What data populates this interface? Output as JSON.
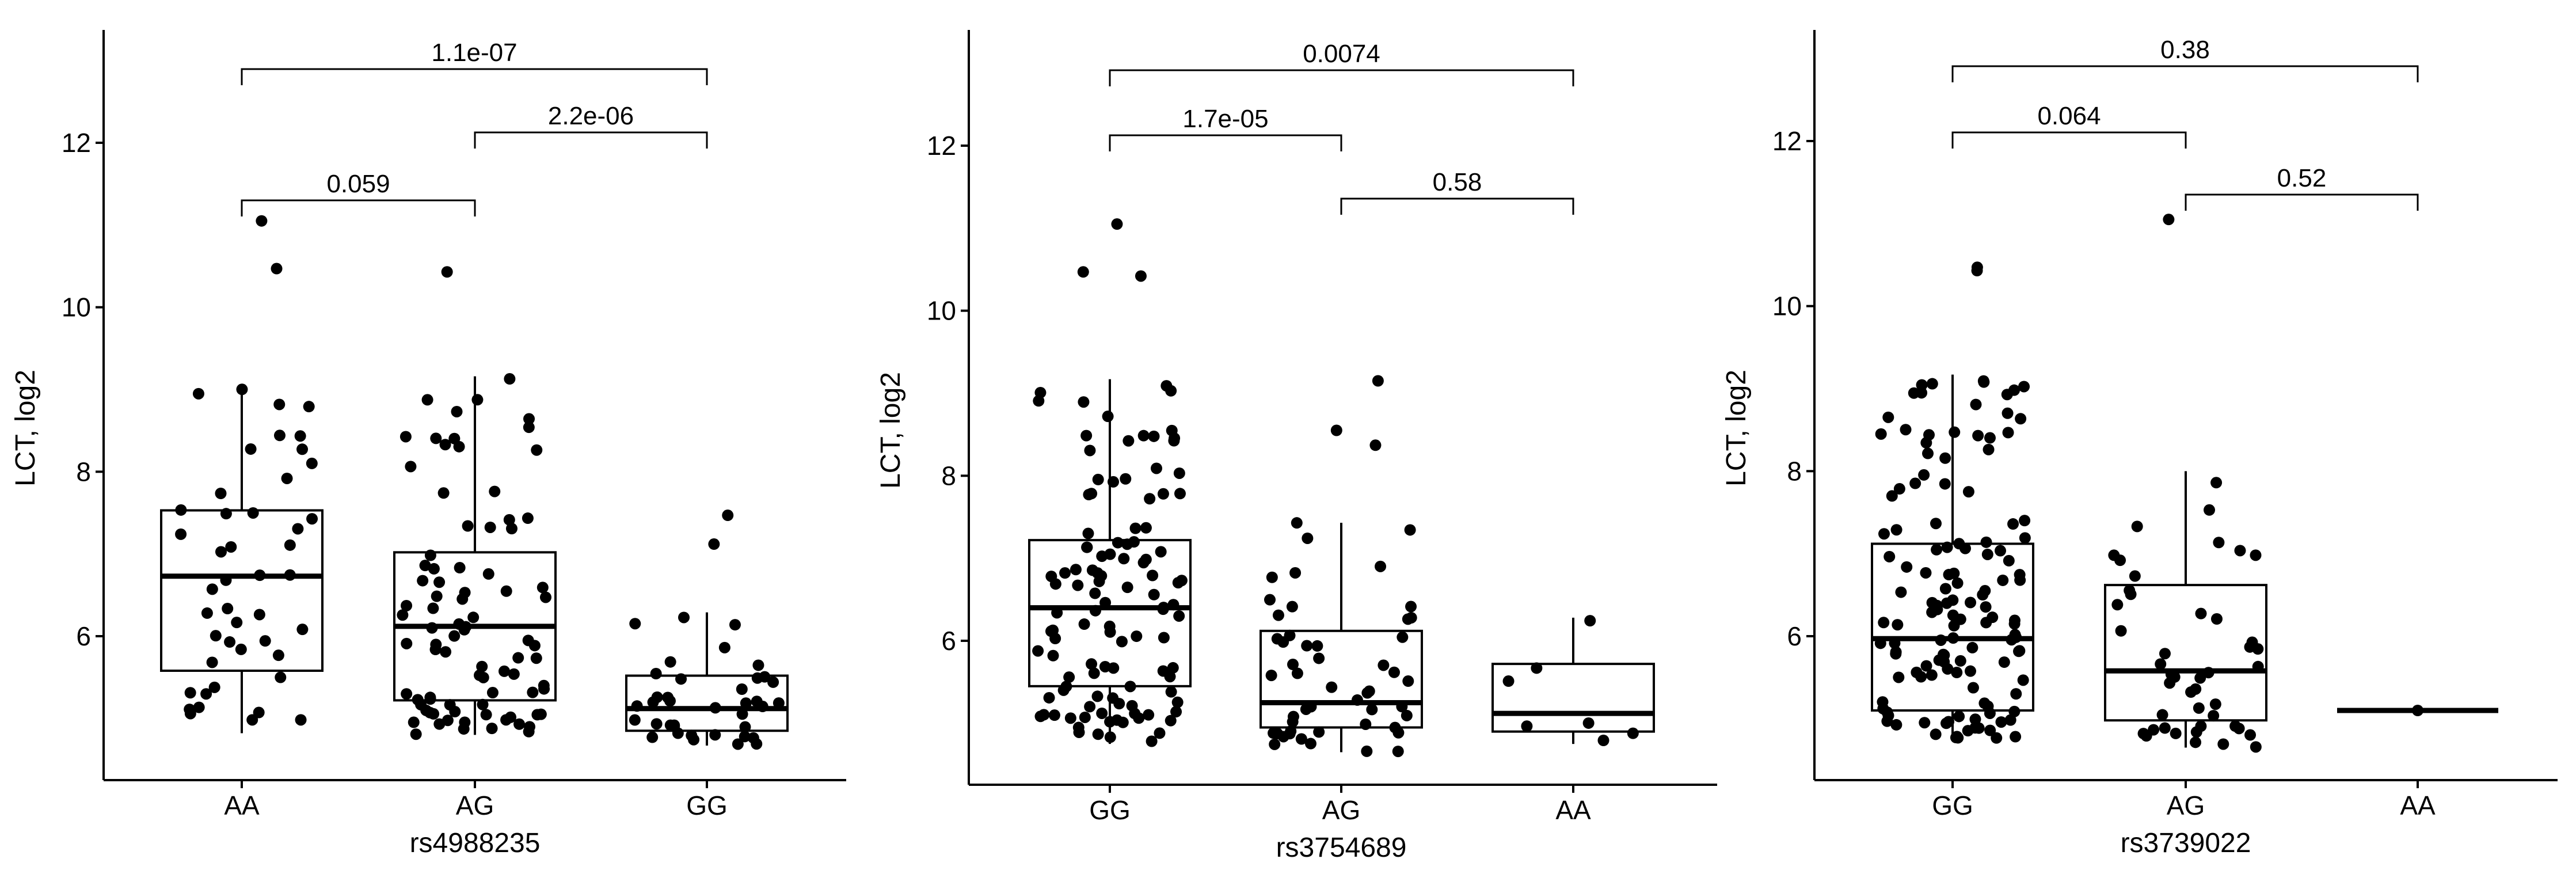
{
  "chart_data": [
    {
      "type": "box",
      "xlabel": "rs4988235",
      "ylabel": "LCT, log2",
      "ylim": [
        4.5,
        13.3
      ],
      "yticks": [
        "6",
        "8",
        "10",
        "12"
      ],
      "categories": [
        "AA",
        "AG",
        "GG"
      ],
      "grid": false,
      "boxes": [
        {
          "q1": 5.58,
          "median": 6.73,
          "q3": 7.53,
          "whisker_low": 4.82,
          "whisker_high": 9.02
        },
        {
          "q1": 5.22,
          "median": 6.12,
          "q3": 7.02,
          "whisker_low": 4.8,
          "whisker_high": 9.16
        },
        {
          "q1": 4.85,
          "median": 5.12,
          "q3": 5.52,
          "whisker_low": 4.67,
          "whisker_high": 6.29
        }
      ],
      "outliers": [
        {
          "group": "AA",
          "y": 10.47
        },
        {
          "group": "AA",
          "y": 11.05
        },
        {
          "group": "AG",
          "y": 10.43
        },
        {
          "group": "GG",
          "y": 7.12
        },
        {
          "group": "GG",
          "y": 7.47
        }
      ],
      "comparisons": [
        {
          "from": "AA",
          "to": "AG",
          "p": "0.059"
        },
        {
          "from": "AG",
          "to": "GG",
          "p": "2.2e-06"
        },
        {
          "from": "AA",
          "to": "GG",
          "p": "1.1e-07"
        }
      ],
      "n": [
        45,
        85,
        38
      ]
    },
    {
      "type": "box",
      "xlabel": "rs3754689",
      "ylabel": "LCT, log2",
      "ylim": [
        4.5,
        13.3
      ],
      "yticks": [
        "6",
        "8",
        "10",
        "12"
      ],
      "categories": [
        "GG",
        "AG",
        "AA"
      ],
      "grid": false,
      "boxes": [
        {
          "q1": 5.45,
          "median": 6.4,
          "q3": 7.22,
          "whisker_low": 4.75,
          "whisker_high": 9.17
        },
        {
          "q1": 4.95,
          "median": 5.25,
          "q3": 6.12,
          "whisker_low": 4.65,
          "whisker_high": 7.43
        },
        {
          "q1": 4.9,
          "median": 5.12,
          "q3": 5.72,
          "whisker_low": 4.75,
          "whisker_high": 6.28
        }
      ],
      "outliers": [
        {
          "group": "GG",
          "y": 10.47
        },
        {
          "group": "GG",
          "y": 10.42
        },
        {
          "group": "GG",
          "y": 11.05
        },
        {
          "group": "AG",
          "y": 8.55
        },
        {
          "group": "AG",
          "y": 8.37
        },
        {
          "group": "AG",
          "y": 9.15
        }
      ],
      "comparisons": [
        {
          "from": "GG",
          "to": "AG",
          "p": "1.7e-05"
        },
        {
          "from": "AG",
          "to": "AA",
          "p": "0.58"
        },
        {
          "from": "GG",
          "to": "AA",
          "p": "0.0074"
        }
      ],
      "n": [
        110,
        50,
        7
      ]
    },
    {
      "type": "box",
      "xlabel": "rs3739022",
      "ylabel": "LCT, log2",
      "ylim": [
        4.5,
        13.3
      ],
      "yticks": [
        "6",
        "8",
        "10",
        "12"
      ],
      "categories": [
        "GG",
        "AG",
        "AA"
      ],
      "grid": false,
      "boxes": [
        {
          "q1": 5.1,
          "median": 5.97,
          "q3": 7.12,
          "whisker_low": 4.75,
          "whisker_high": 9.17
        },
        {
          "q1": 4.98,
          "median": 5.58,
          "q3": 6.62,
          "whisker_low": 4.65,
          "whisker_high": 8.0
        },
        {
          "q1": 5.1,
          "median": 5.1,
          "q3": 5.1,
          "whisker_low": 5.1,
          "whisker_high": 5.1
        }
      ],
      "outliers": [
        {
          "group": "GG",
          "y": 10.47
        },
        {
          "group": "GG",
          "y": 10.43
        },
        {
          "group": "AG",
          "y": 11.05
        }
      ],
      "comparisons": [
        {
          "from": "GG",
          "to": "AG",
          "p": "0.064"
        },
        {
          "from": "AG",
          "to": "AA",
          "p": "0.52"
        },
        {
          "from": "GG",
          "to": "AA",
          "p": "0.38"
        }
      ],
      "n": [
        130,
        45,
        1
      ]
    }
  ]
}
